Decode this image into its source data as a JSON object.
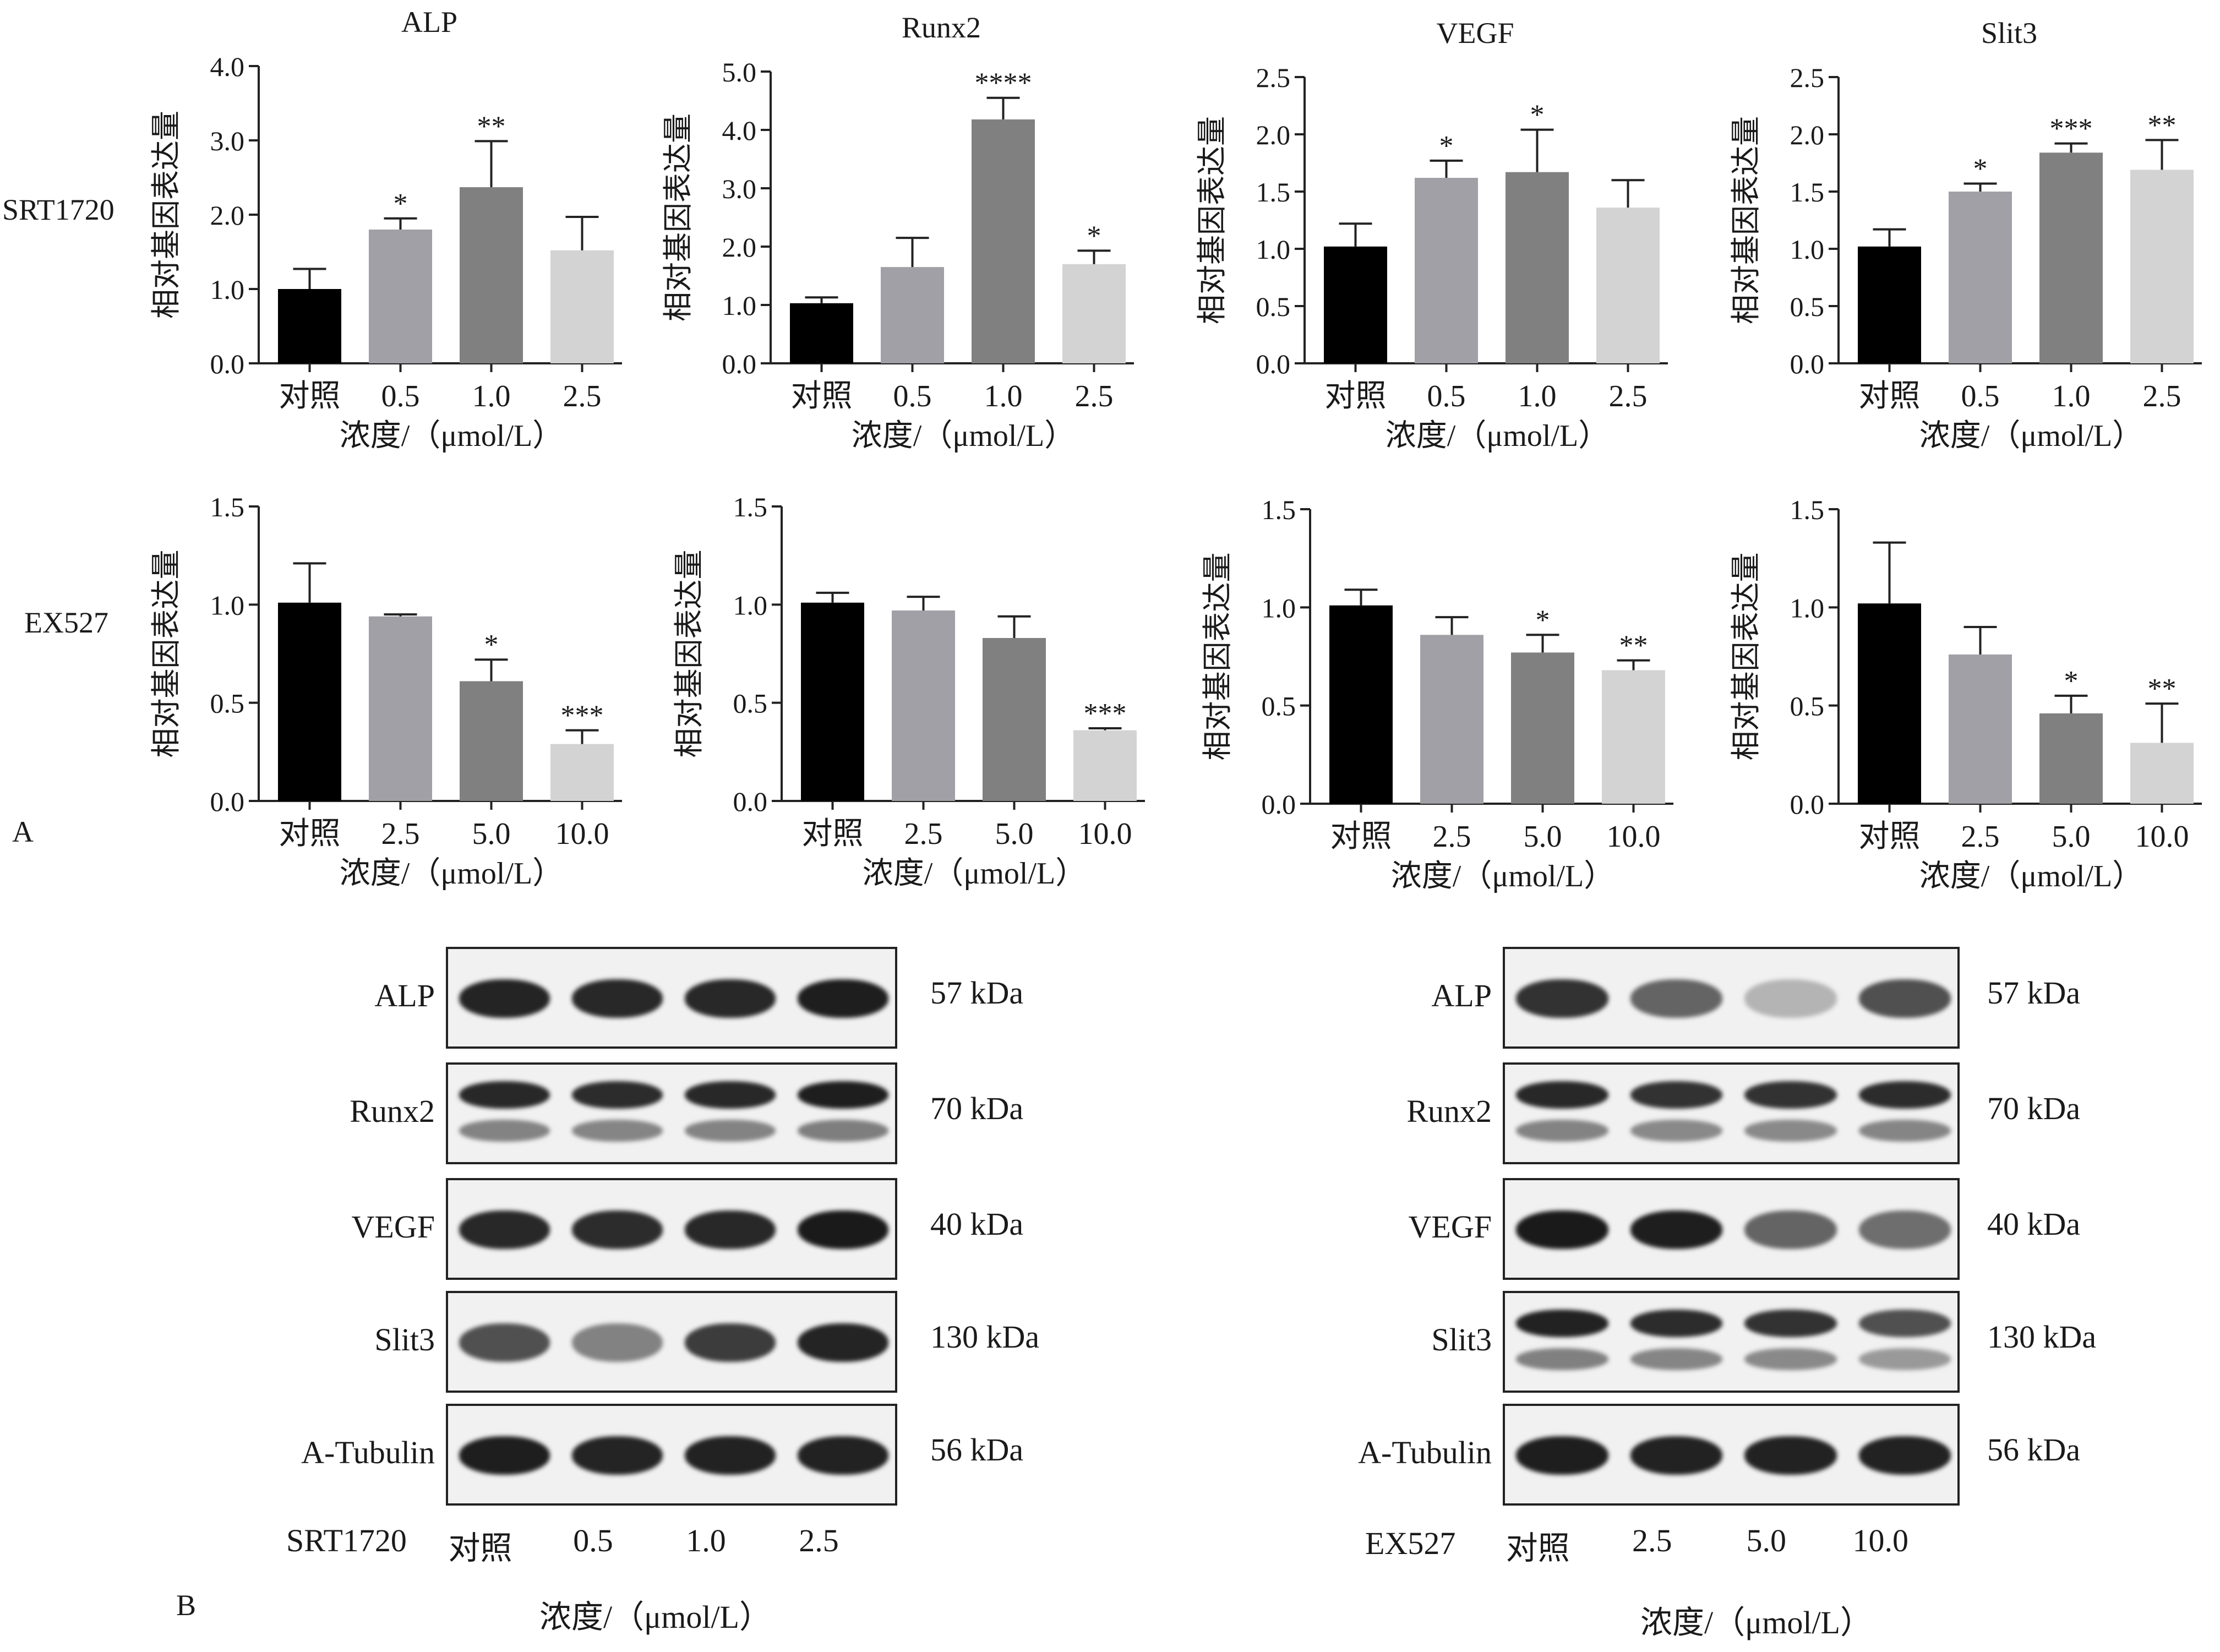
{
  "panel_labels": {
    "A": "A",
    "B": "B"
  },
  "row_labels": {
    "top": "SRT1720",
    "bottom": "EX527"
  },
  "y_axis_label": "相对基因表达量",
  "x_axis_label": "浓度/（μmol/L）",
  "bar_colors": [
    "#000000",
    "#a0a0a6",
    "#808080",
    "#d3d3d3"
  ],
  "chart_data": [
    {
      "type": "bar",
      "title": "ALP",
      "categories": [
        "对照",
        "0.5",
        "1.0",
        "2.5"
      ],
      "values": [
        1.0,
        1.8,
        2.37,
        1.52
      ],
      "errors": [
        0.27,
        0.15,
        0.62,
        0.45
      ],
      "significance": [
        "",
        "*",
        "**",
        ""
      ],
      "ylim": [
        0,
        4.0
      ],
      "yticks": [
        "0.0",
        "1.0",
        "2.0",
        "3.0",
        "4.0"
      ],
      "ylabel": "相对基因表达量",
      "xlabel": "浓度/（μmol/L）"
    },
    {
      "type": "bar",
      "title": "Runx2",
      "categories": [
        "对照",
        "0.5",
        "1.0",
        "2.5"
      ],
      "values": [
        1.03,
        1.65,
        4.18,
        1.7
      ],
      "errors": [
        0.1,
        0.5,
        0.37,
        0.23
      ],
      "significance": [
        "",
        "",
        "****",
        "*"
      ],
      "ylim": [
        0,
        5.0
      ],
      "yticks": [
        "0.0",
        "1.0",
        "2.0",
        "3.0",
        "4.0",
        "5.0"
      ],
      "ylabel": "相对基因表达量",
      "xlabel": "浓度/（μmol/L）"
    },
    {
      "type": "bar",
      "title": "VEGF",
      "categories": [
        "对照",
        "0.5",
        "1.0",
        "2.5"
      ],
      "values": [
        1.02,
        1.62,
        1.67,
        1.36
      ],
      "errors": [
        0.2,
        0.15,
        0.37,
        0.24
      ],
      "significance": [
        "",
        "*",
        "*",
        ""
      ],
      "ylim": [
        0,
        2.5
      ],
      "yticks": [
        "0.0",
        "0.5",
        "1.0",
        "1.5",
        "2.0",
        "2.5"
      ],
      "ylabel": "相对基因表达量",
      "xlabel": "浓度/（μmol/L）"
    },
    {
      "type": "bar",
      "title": "Slit3",
      "categories": [
        "对照",
        "0.5",
        "1.0",
        "2.5"
      ],
      "values": [
        1.02,
        1.5,
        1.84,
        1.69
      ],
      "errors": [
        0.15,
        0.07,
        0.08,
        0.26
      ],
      "significance": [
        "",
        "*",
        "***",
        "**"
      ],
      "ylim": [
        0,
        2.5
      ],
      "yticks": [
        "0.0",
        "0.5",
        "1.0",
        "1.5",
        "2.0",
        "2.5"
      ],
      "ylabel": "相对基因表达量",
      "xlabel": "浓度/（μmol/L）"
    },
    {
      "type": "bar",
      "title": "",
      "categories": [
        "对照",
        "2.5",
        "5.0",
        "10.0"
      ],
      "values": [
        1.01,
        0.94,
        0.61,
        0.29
      ],
      "errors": [
        0.2,
        0.01,
        0.11,
        0.07
      ],
      "significance": [
        "",
        "",
        "*",
        "***"
      ],
      "ylim": [
        0,
        1.5
      ],
      "yticks": [
        "0.0",
        "0.5",
        "1.0",
        "1.5"
      ],
      "ylabel": "相对基因表达量",
      "xlabel": "浓度/（μmol/L）"
    },
    {
      "type": "bar",
      "title": "",
      "categories": [
        "对照",
        "2.5",
        "5.0",
        "10.0"
      ],
      "values": [
        1.01,
        0.97,
        0.83,
        0.36
      ],
      "errors": [
        0.05,
        0.07,
        0.11,
        0.01
      ],
      "significance": [
        "",
        "",
        "",
        "***"
      ],
      "ylim": [
        0,
        1.5
      ],
      "yticks": [
        "0.0",
        "0.5",
        "1.0",
        "1.5"
      ],
      "ylabel": "相对基因表达量",
      "xlabel": "浓度/（μmol/L）"
    },
    {
      "type": "bar",
      "title": "",
      "categories": [
        "对照",
        "2.5",
        "5.0",
        "10.0"
      ],
      "values": [
        1.01,
        0.86,
        0.77,
        0.68
      ],
      "errors": [
        0.08,
        0.09,
        0.09,
        0.05
      ],
      "significance": [
        "",
        "",
        "*",
        "**"
      ],
      "ylim": [
        0,
        1.5
      ],
      "yticks": [
        "0.0",
        "0.5",
        "1.0",
        "1.5"
      ],
      "ylabel": "相对基因表达量",
      "xlabel": "浓度/（μmol/L）"
    },
    {
      "type": "bar",
      "title": "",
      "categories": [
        "对照",
        "2.5",
        "5.0",
        "10.0"
      ],
      "values": [
        1.02,
        0.76,
        0.46,
        0.31
      ],
      "errors": [
        0.31,
        0.14,
        0.09,
        0.2
      ],
      "significance": [
        "",
        "",
        "*",
        "**"
      ],
      "ylim": [
        0,
        1.5
      ],
      "yticks": [
        "0.0",
        "0.5",
        "1.0",
        "1.5"
      ],
      "ylabel": "相对基因表达量",
      "xlabel": "浓度/（μmol/L）"
    }
  ],
  "western_blots": [
    {
      "group_label": "SRT1720",
      "lanes": [
        "对照",
        "0.5",
        "1.0",
        "2.5"
      ],
      "conc_label": "浓度/（μmol/L）",
      "proteins": [
        {
          "name": "ALP",
          "kda": "57 kDa",
          "intensity": [
            0.92,
            0.9,
            0.9,
            0.95
          ],
          "double": false
        },
        {
          "name": "Runx2",
          "kda": "70 kDa",
          "intensity": [
            0.9,
            0.88,
            0.9,
            0.95
          ],
          "double": true
        },
        {
          "name": "VEGF",
          "kda": "40 kDa",
          "intensity": [
            0.9,
            0.88,
            0.9,
            0.97
          ],
          "double": false
        },
        {
          "name": "Slit3",
          "kda": "130 kDa",
          "intensity": [
            0.7,
            0.45,
            0.8,
            0.92
          ],
          "double": false
        },
        {
          "name": "A-Tubulin",
          "kda": "56 kDa",
          "intensity": [
            0.95,
            0.92,
            0.93,
            0.93
          ],
          "double": false
        }
      ]
    },
    {
      "group_label": "EX527",
      "lanes": [
        "对照",
        "2.5",
        "5.0",
        "10.0"
      ],
      "conc_label": "浓度/（μmol/L）",
      "proteins": [
        {
          "name": "ALP",
          "kda": "57 kDa",
          "intensity": [
            0.85,
            0.6,
            0.2,
            0.7
          ],
          "double": false
        },
        {
          "name": "Runx2",
          "kda": "70 kDa",
          "intensity": [
            0.9,
            0.85,
            0.85,
            0.88
          ],
          "double": true
        },
        {
          "name": "VEGF",
          "kda": "40 kDa",
          "intensity": [
            0.97,
            0.95,
            0.6,
            0.55
          ],
          "double": false
        },
        {
          "name": "Slit3",
          "kda": "130 kDa",
          "intensity": [
            0.93,
            0.88,
            0.85,
            0.7
          ],
          "double": true
        },
        {
          "name": "A-Tubulin",
          "kda": "56 kDa",
          "intensity": [
            0.95,
            0.93,
            0.93,
            0.93
          ],
          "double": false
        }
      ]
    }
  ]
}
